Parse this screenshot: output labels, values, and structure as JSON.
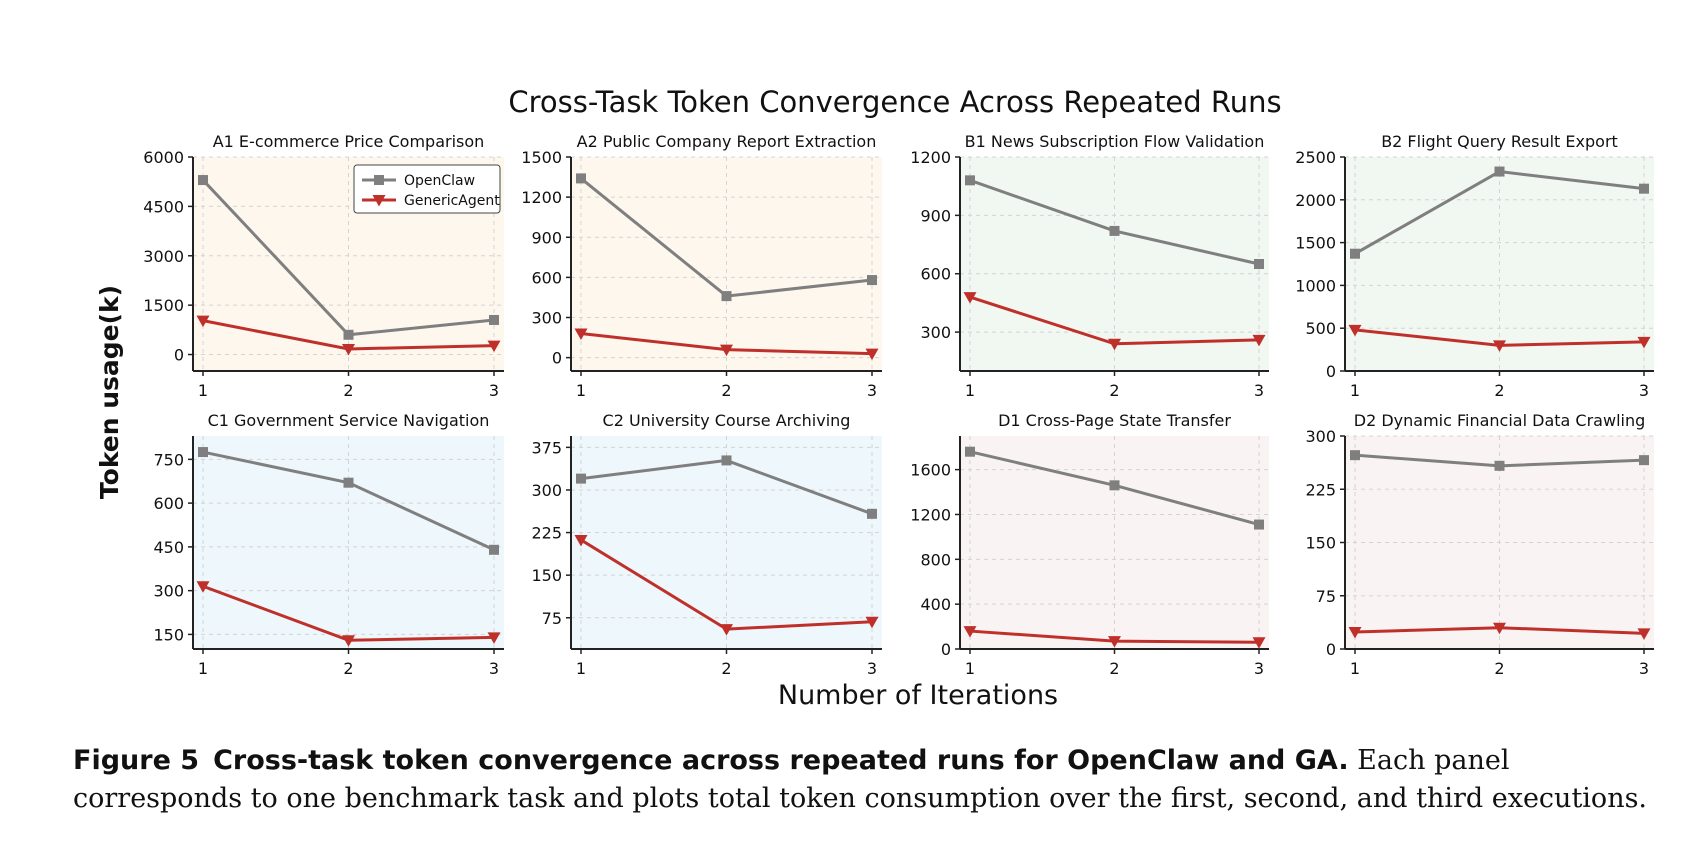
{
  "figure": {
    "title": "Cross-Task Token Convergence Across Repeated Runs",
    "ylabel": "Token  usage(k)",
    "xlabel": "Number of Iterations"
  },
  "legend": [
    "OpenClaw",
    "GenericAgent"
  ],
  "colors": {
    "openclaw": "#7f7f7f",
    "genericagent": "#c0302a",
    "panel_A": "#fdf7ee",
    "panel_B": "#f1f7f1",
    "panel_C": "#eef7fb",
    "panel_D": "#faf3f3"
  },
  "chart_data": [
    {
      "type": "line",
      "title": "A1 E-commerce Price Comparison",
      "x": [
        1,
        2,
        3
      ],
      "ylim": [
        -500,
        6000
      ],
      "yticks": [
        0,
        1500,
        3000,
        4500,
        6000
      ],
      "bg": "panel_A",
      "legend_position": "top-right",
      "series": [
        {
          "name": "OpenClaw",
          "values": [
            5300,
            600,
            1050
          ]
        },
        {
          "name": "GenericAgent",
          "values": [
            1030,
            170,
            270
          ]
        }
      ]
    },
    {
      "type": "line",
      "title": "A2 Public Company Report Extraction",
      "x": [
        1,
        2,
        3
      ],
      "ylim": [
        -100,
        1500
      ],
      "yticks": [
        0,
        300,
        600,
        900,
        1200,
        1500
      ],
      "bg": "panel_A",
      "series": [
        {
          "name": "OpenClaw",
          "values": [
            1340,
            460,
            580
          ]
        },
        {
          "name": "GenericAgent",
          "values": [
            180,
            60,
            30
          ]
        }
      ]
    },
    {
      "type": "line",
      "title": "B1 News Subscription Flow Validation",
      "x": [
        1,
        2,
        3
      ],
      "ylim": [
        100,
        1200
      ],
      "yticks": [
        300,
        600,
        900,
        1200
      ],
      "bg": "panel_B",
      "series": [
        {
          "name": "OpenClaw",
          "values": [
            1080,
            820,
            650
          ]
        },
        {
          "name": "GenericAgent",
          "values": [
            480,
            240,
            260
          ]
        }
      ]
    },
    {
      "type": "line",
      "title": "B2 Flight Query Result Export",
      "x": [
        1,
        2,
        3
      ],
      "ylim": [
        0,
        2500
      ],
      "yticks": [
        0,
        500,
        1000,
        1500,
        2000,
        2500
      ],
      "bg": "panel_B",
      "series": [
        {
          "name": "OpenClaw",
          "values": [
            1370,
            2330,
            2130
          ]
        },
        {
          "name": "GenericAgent",
          "values": [
            480,
            300,
            340
          ]
        }
      ]
    },
    {
      "type": "line",
      "title": "C1 Government Service Navigation",
      "x": [
        1,
        2,
        3
      ],
      "ylim": [
        100,
        830
      ],
      "yticks": [
        150,
        300,
        450,
        600,
        750
      ],
      "bg": "panel_C",
      "series": [
        {
          "name": "OpenClaw",
          "values": [
            775,
            670,
            440
          ]
        },
        {
          "name": "GenericAgent",
          "values": [
            315,
            130,
            140
          ]
        }
      ]
    },
    {
      "type": "line",
      "title": "C2 University Course Archiving",
      "x": [
        1,
        2,
        3
      ],
      "ylim": [
        20,
        395
      ],
      "yticks": [
        75,
        150,
        225,
        300,
        375
      ],
      "bg": "panel_C",
      "series": [
        {
          "name": "OpenClaw",
          "values": [
            320,
            352,
            258
          ]
        },
        {
          "name": "GenericAgent",
          "values": [
            212,
            55,
            68
          ]
        }
      ]
    },
    {
      "type": "line",
      "title": "D1 Cross-Page State Transfer",
      "x": [
        1,
        2,
        3
      ],
      "ylim": [
        0,
        1900
      ],
      "yticks": [
        0,
        400,
        800,
        1200,
        1600
      ],
      "bg": "panel_D",
      "series": [
        {
          "name": "OpenClaw",
          "values": [
            1760,
            1460,
            1110
          ]
        },
        {
          "name": "GenericAgent",
          "values": [
            160,
            70,
            60
          ]
        }
      ]
    },
    {
      "type": "line",
      "title": "D2 Dynamic Financial Data Crawling",
      "x": [
        1,
        2,
        3
      ],
      "ylim": [
        0,
        300
      ],
      "yticks": [
        0,
        75,
        150,
        225,
        300
      ],
      "bg": "panel_D",
      "series": [
        {
          "name": "OpenClaw",
          "values": [
            273,
            258,
            266
          ]
        },
        {
          "name": "GenericAgent",
          "values": [
            24,
            30,
            22
          ]
        }
      ]
    }
  ],
  "caption": {
    "label": "Figure 5",
    "bold": "Cross-task token convergence across repeated runs for OpenClaw and GA.",
    "text": " Each panel corresponds to one benchmark task and plots total token consumption over the first, second, and third executions."
  }
}
